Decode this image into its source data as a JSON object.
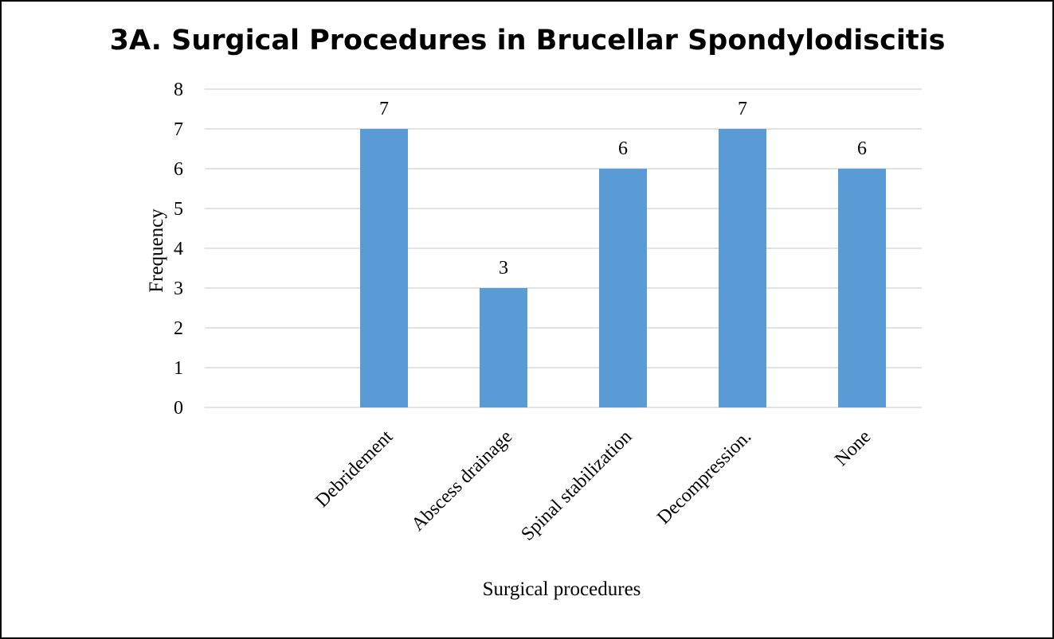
{
  "chart_data": {
    "type": "bar",
    "title": "3A. Surgical Procedures in Brucellar Spondylodiscitis",
    "xlabel": "Surgical procedures",
    "ylabel": "Frequency",
    "categories": [
      "",
      "Debridement",
      "Abscess drainage",
      "Spinal stabilization",
      "Decompression.",
      "None"
    ],
    "values": [
      null,
      7,
      3,
      6,
      7,
      6
    ],
    "data_labels": [
      "",
      "7",
      "3",
      "6",
      "7",
      "6"
    ],
    "ylim": [
      0,
      8
    ],
    "yticks": [
      "0",
      "1",
      "2",
      "3",
      "4",
      "5",
      "6",
      "7",
      "8"
    ],
    "grid": true,
    "legend": "none",
    "bar_color": "#5b9bd5",
    "grid_color": "#d9d9d9"
  }
}
